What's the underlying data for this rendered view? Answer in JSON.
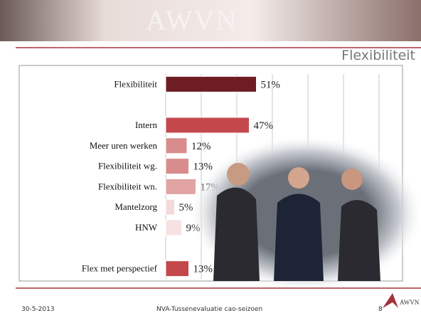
{
  "header": {
    "brand": "AWVN",
    "title": "Flexibiliteit"
  },
  "chart_data": {
    "type": "bar",
    "orientation": "horizontal",
    "categories": [
      "Flexibiliteit",
      null,
      "Intern",
      "Meer uren werken",
      "Flexibiliteit wg.",
      "Flexibiliteit wn.",
      "Mantelzorg",
      "HNW",
      null,
      "Flex met perspectief"
    ],
    "values": [
      51,
      null,
      47,
      12,
      13,
      17,
      5,
      9,
      null,
      13
    ],
    "value_labels": [
      "51%",
      null,
      "47%",
      "12%",
      "13%",
      "17%",
      "5%",
      "9%",
      null,
      "13%"
    ],
    "colors": [
      "#6e1d24",
      null,
      "#c4474c",
      "#d98c8c",
      "#d98c8c",
      "#e2a3a3",
      "#f3d9d9",
      "#f6e2e2",
      null,
      "#c4474c"
    ],
    "xlim": [
      0,
      120
    ],
    "xticks": [
      0,
      20,
      40,
      60,
      80,
      100,
      120
    ],
    "grid": true
  },
  "footer": {
    "date": "30-5-2013",
    "subject": "NVA-Tussenevaluatie cao-seizoen",
    "page": "8",
    "logo": "AWVN"
  }
}
